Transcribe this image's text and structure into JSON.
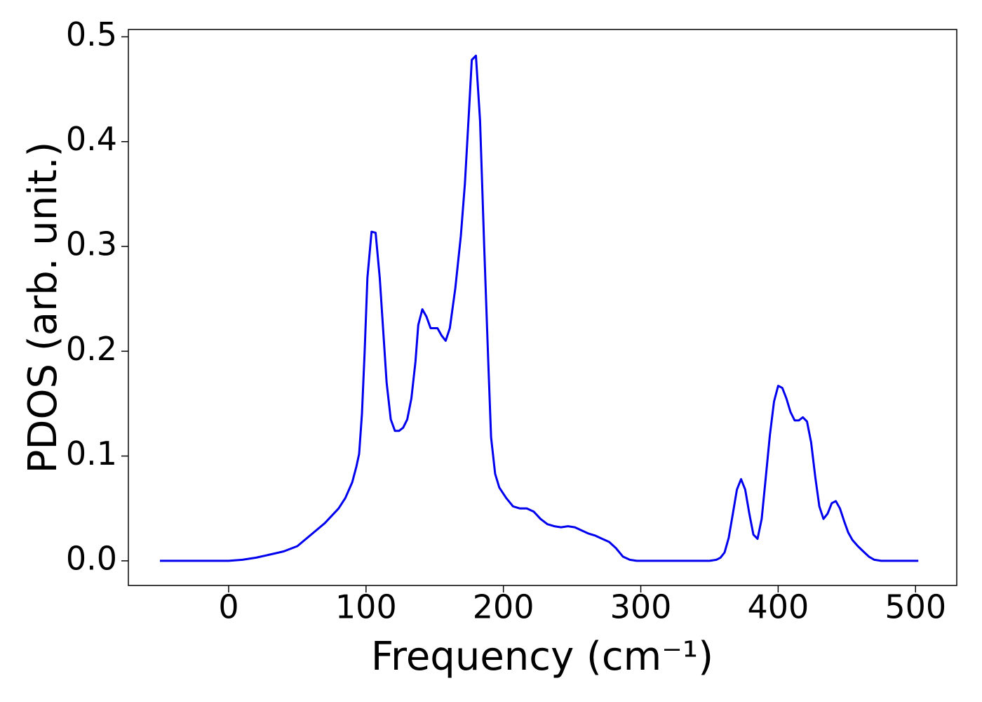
{
  "chart_data": {
    "type": "line",
    "xlabel": "Frequency (cm⁻¹)",
    "ylabel": "PDOS (arb. unit.)",
    "xlim": [
      -73,
      530
    ],
    "ylim": [
      -0.0235,
      0.507
    ],
    "xticks": [
      0,
      100,
      200,
      300,
      400,
      500
    ],
    "yticks": [
      {
        "value": 0,
        "label": "0.0"
      },
      0.1,
      0.2,
      0.3,
      0.4,
      0.5
    ],
    "grid": false,
    "series": [
      {
        "color": "#0000ee",
        "x": [
          -50,
          -25,
          0,
          10,
          20,
          30,
          40,
          50,
          60,
          70,
          80,
          85,
          90,
          93,
          95,
          97,
          99,
          101,
          104,
          107,
          110,
          115,
          118,
          121,
          124,
          127,
          130,
          133,
          136,
          138,
          141,
          144,
          147,
          152,
          155,
          158,
          161,
          165,
          169,
          172,
          175,
          177,
          180,
          183,
          186,
          189,
          191,
          194,
          197,
          202,
          207,
          212,
          217,
          222,
          227,
          232,
          237,
          242,
          247,
          252,
          257,
          262,
          267,
          272,
          277,
          282,
          287,
          292,
          297,
          350,
          355,
          358,
          361,
          364,
          367,
          370,
          373,
          376,
          379,
          382,
          385,
          388,
          391,
          394,
          397,
          400,
          403,
          406,
          409,
          412,
          415,
          418,
          421,
          424,
          427,
          430,
          433,
          436,
          439,
          442,
          445,
          448,
          451,
          454,
          458,
          462,
          466,
          470,
          475,
          502
        ],
        "values": [
          0,
          0,
          0,
          0.001,
          0.003,
          0.006,
          0.009,
          0.014,
          0.025,
          0.036,
          0.05,
          0.06,
          0.075,
          0.09,
          0.102,
          0.14,
          0.2,
          0.27,
          0.314,
          0.313,
          0.27,
          0.17,
          0.135,
          0.124,
          0.124,
          0.127,
          0.135,
          0.155,
          0.19,
          0.225,
          0.24,
          0.233,
          0.222,
          0.222,
          0.215,
          0.21,
          0.222,
          0.26,
          0.31,
          0.36,
          0.43,
          0.478,
          0.482,
          0.42,
          0.3,
          0.19,
          0.118,
          0.083,
          0.07,
          0.06,
          0.052,
          0.05,
          0.05,
          0.047,
          0.04,
          0.035,
          0.033,
          0.032,
          0.033,
          0.032,
          0.029,
          0.026,
          0.024,
          0.021,
          0.018,
          0.012,
          0.004,
          0.001,
          0,
          0,
          0.001,
          0.003,
          0.008,
          0.022,
          0.045,
          0.068,
          0.078,
          0.068,
          0.045,
          0.025,
          0.021,
          0.04,
          0.08,
          0.12,
          0.152,
          0.167,
          0.165,
          0.155,
          0.142,
          0.134,
          0.134,
          0.137,
          0.133,
          0.113,
          0.08,
          0.052,
          0.04,
          0.045,
          0.055,
          0.057,
          0.05,
          0.038,
          0.027,
          0.02,
          0.014,
          0.009,
          0.004,
          0.001,
          0,
          0
        ]
      }
    ]
  }
}
